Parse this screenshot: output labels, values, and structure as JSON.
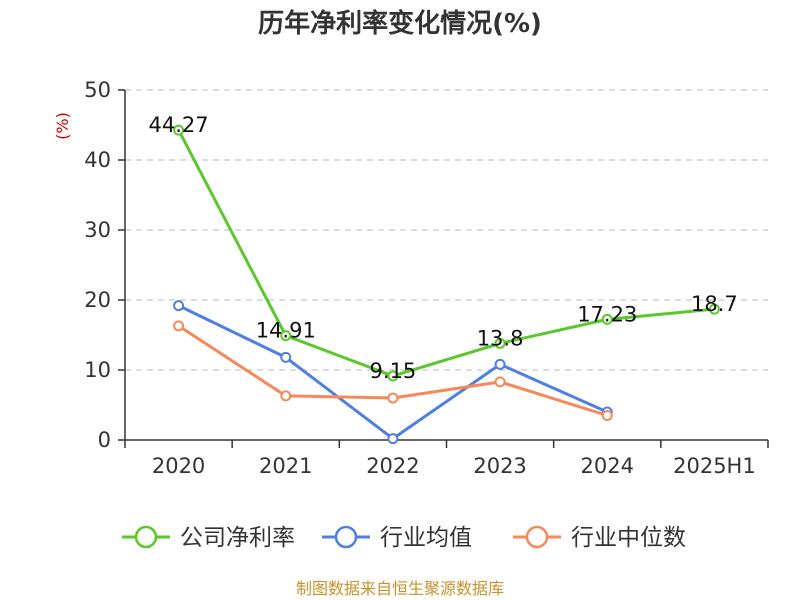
{
  "chart_data": {
    "type": "line",
    "title": "历年净利率变化情况(%)",
    "ylabel": "(%)",
    "categories": [
      "2020",
      "2021",
      "2022",
      "2023",
      "2024",
      "2025H1"
    ],
    "ylim": [
      0,
      50
    ],
    "yticks": [
      0,
      10,
      20,
      30,
      40,
      50
    ],
    "grid": true,
    "legend_position": "bottom",
    "series": [
      {
        "name": "公司净利率",
        "color": "#5cc72c",
        "values": [
          44.27,
          14.91,
          9.15,
          13.8,
          17.23,
          18.7
        ],
        "labels": [
          "44.27",
          "14.91",
          "9.15",
          "13.8",
          "17.23",
          "18.7"
        ]
      },
      {
        "name": "行业均值",
        "color": "#4f7fe0",
        "values": [
          19.2,
          11.8,
          0.2,
          10.8,
          4.0,
          null
        ]
      },
      {
        "name": "行业中位数",
        "color": "#f5895a",
        "values": [
          16.3,
          6.3,
          6.0,
          8.3,
          3.5,
          null
        ]
      }
    ],
    "source": "制图数据来自恒生聚源数据库",
    "source_color": "#c8922a",
    "ylabel_color": "#cc0000"
  }
}
